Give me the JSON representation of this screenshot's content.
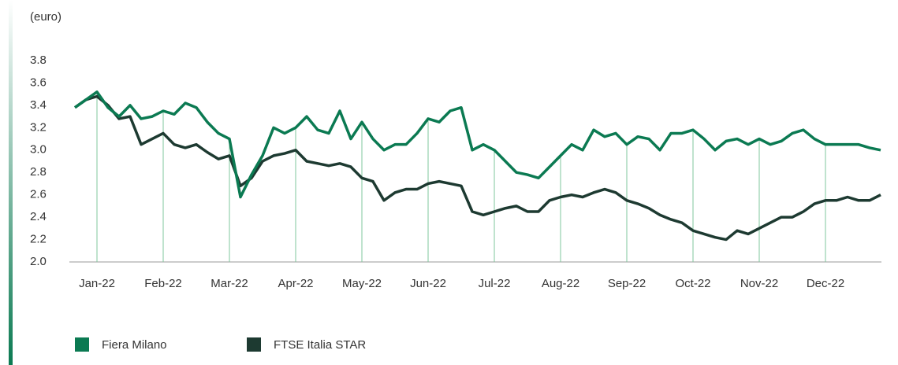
{
  "chart_data": {
    "type": "line",
    "y_label": "(euro)",
    "categories": [
      null,
      null,
      "Jan-22",
      null,
      null,
      null,
      null,
      null,
      "Feb-22",
      null,
      null,
      null,
      null,
      null,
      "Mar-22",
      null,
      null,
      null,
      null,
      null,
      "Apr-22",
      null,
      null,
      null,
      null,
      null,
      "May-22",
      null,
      null,
      null,
      null,
      null,
      "Jun-22",
      null,
      null,
      null,
      null,
      null,
      "Jul-22",
      null,
      null,
      null,
      null,
      null,
      "Aug-22",
      null,
      null,
      null,
      null,
      null,
      "Sep-22",
      null,
      null,
      null,
      null,
      null,
      "Oct-22",
      null,
      null,
      null,
      null,
      null,
      "Nov-22",
      null,
      null,
      null,
      null,
      null,
      "Dec-22",
      null,
      null,
      null,
      null,
      null
    ],
    "series": [
      {
        "name": "Fiera Milano",
        "color": "#0b7a52",
        "values": [
          3.38,
          3.45,
          3.52,
          3.38,
          3.3,
          3.4,
          3.28,
          3.3,
          3.35,
          3.32,
          3.42,
          3.38,
          3.25,
          3.15,
          3.1,
          2.58,
          2.78,
          2.95,
          3.2,
          3.15,
          3.2,
          3.3,
          3.18,
          3.15,
          3.35,
          3.1,
          3.25,
          3.1,
          3.0,
          3.05,
          3.05,
          3.15,
          3.28,
          3.25,
          3.35,
          3.38,
          3.0,
          3.05,
          3.0,
          2.9,
          2.8,
          2.78,
          2.75,
          2.85,
          2.95,
          3.05,
          3.0,
          3.18,
          3.12,
          3.15,
          3.05,
          3.12,
          3.1,
          3.0,
          3.15,
          3.15,
          3.18,
          3.1,
          3.0,
          3.08,
          3.1,
          3.05,
          3.1,
          3.05,
          3.08,
          3.15,
          3.18,
          3.1,
          3.05,
          3.05,
          3.05,
          3.05,
          3.02,
          3.0
        ]
      },
      {
        "name": "FTSE Italia STAR",
        "color": "#1d3a31",
        "values": [
          3.38,
          3.45,
          3.48,
          3.4,
          3.28,
          3.3,
          3.05,
          3.1,
          3.15,
          3.05,
          3.02,
          3.05,
          2.98,
          2.92,
          2.95,
          2.68,
          2.75,
          2.9,
          2.95,
          2.97,
          3.0,
          2.9,
          2.88,
          2.86,
          2.88,
          2.85,
          2.75,
          2.72,
          2.55,
          2.62,
          2.65,
          2.65,
          2.7,
          2.72,
          2.7,
          2.68,
          2.45,
          2.42,
          2.45,
          2.48,
          2.5,
          2.45,
          2.45,
          2.55,
          2.58,
          2.6,
          2.58,
          2.62,
          2.65,
          2.62,
          2.55,
          2.52,
          2.48,
          2.42,
          2.38,
          2.35,
          2.28,
          2.25,
          2.22,
          2.2,
          2.28,
          2.25,
          2.3,
          2.35,
          2.4,
          2.4,
          2.45,
          2.52,
          2.55,
          2.55,
          2.58,
          2.55,
          2.55,
          2.6
        ]
      }
    ],
    "ylim": [
      2.0,
      3.8
    ],
    "yticks": [
      {
        "value": 2,
        "label": "2.0"
      },
      2.2,
      2.4,
      2.6,
      2.8,
      {
        "value": 3,
        "label": "3.0"
      },
      3.2,
      3.4,
      3.6,
      3.8
    ],
    "legend": "bottom-left"
  }
}
